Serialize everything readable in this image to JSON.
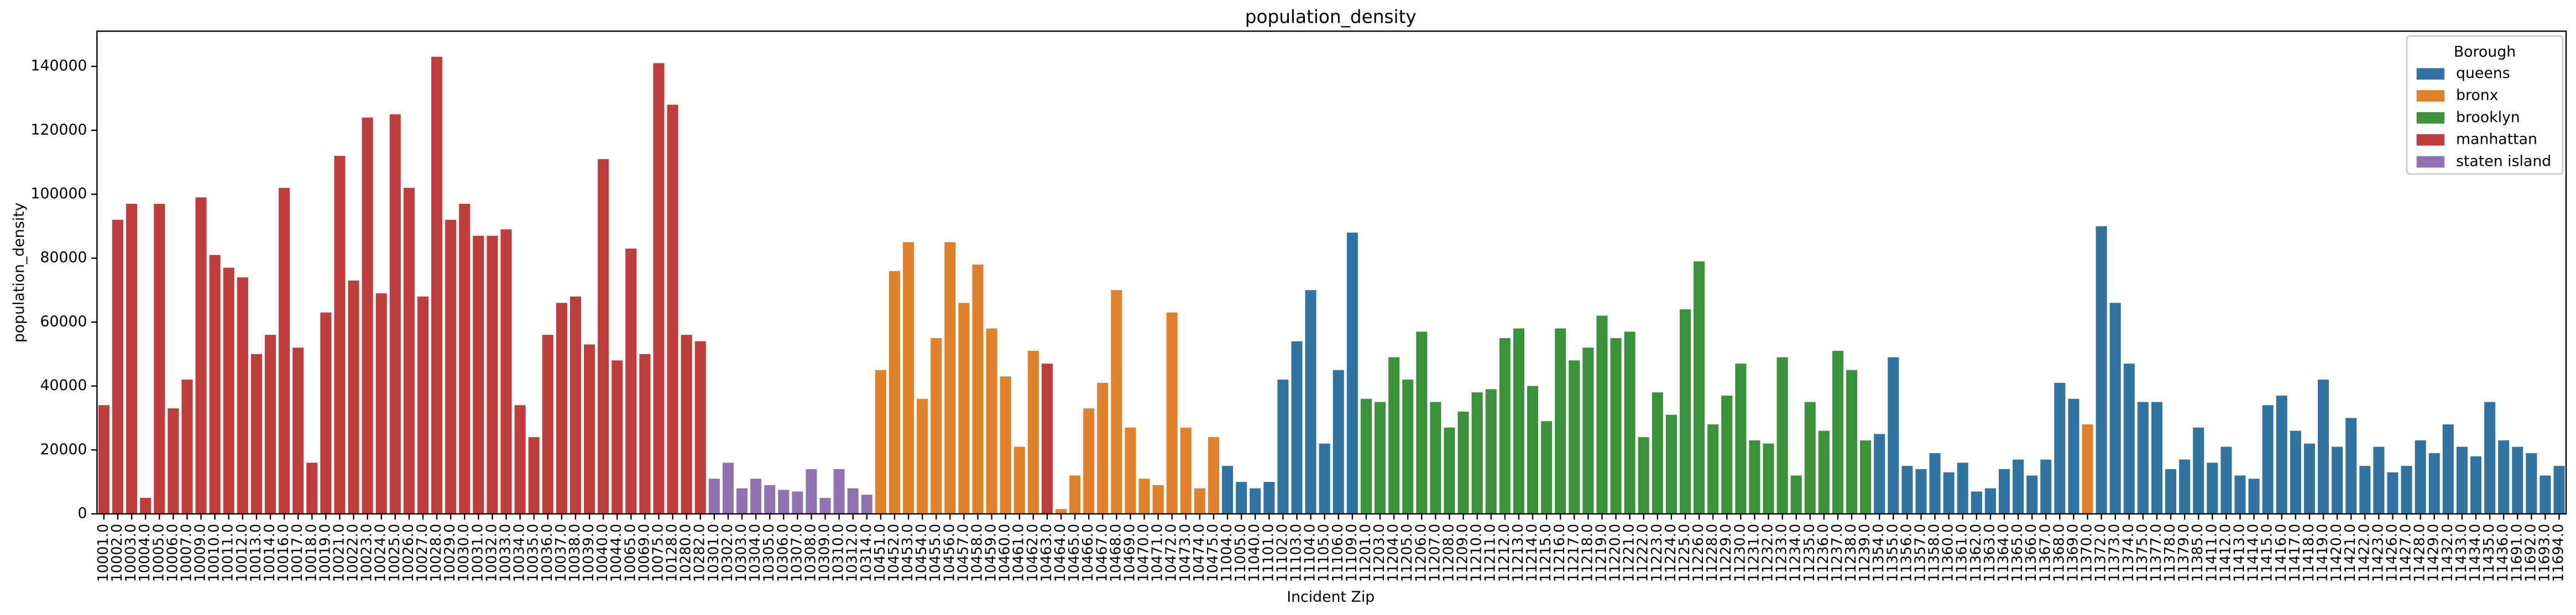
{
  "chart_data": {
    "type": "bar",
    "title": "population_density",
    "xlabel": "Incident Zip",
    "ylabel": "population_density",
    "legend_title": "Borough",
    "legend": "upper right",
    "series": [
      {
        "name": "queens",
        "color": "#3274a1"
      },
      {
        "name": "bronx",
        "color": "#e1812c"
      },
      {
        "name": "brooklyn",
        "color": "#3a923a"
      },
      {
        "name": "manhattan",
        "color": "#c03d3e"
      },
      {
        "name": "staten island",
        "color": "#9372b2"
      }
    ],
    "categories": [
      "10001.0",
      "10002.0",
      "10003.0",
      "10004.0",
      "10005.0",
      "10006.0",
      "10007.0",
      "10009.0",
      "10010.0",
      "10011.0",
      "10012.0",
      "10013.0",
      "10014.0",
      "10016.0",
      "10017.0",
      "10018.0",
      "10019.0",
      "10021.0",
      "10022.0",
      "10023.0",
      "10024.0",
      "10025.0",
      "10026.0",
      "10027.0",
      "10028.0",
      "10029.0",
      "10030.0",
      "10031.0",
      "10032.0",
      "10033.0",
      "10034.0",
      "10035.0",
      "10036.0",
      "10037.0",
      "10038.0",
      "10039.0",
      "10040.0",
      "10044.0",
      "10065.0",
      "10069.0",
      "10075.0",
      "10128.0",
      "10280.0",
      "10282.0",
      "10301.0",
      "10302.0",
      "10303.0",
      "10304.0",
      "10305.0",
      "10306.0",
      "10307.0",
      "10308.0",
      "10309.0",
      "10310.0",
      "10312.0",
      "10314.0",
      "10451.0",
      "10452.0",
      "10453.0",
      "10454.0",
      "10455.0",
      "10456.0",
      "10457.0",
      "10458.0",
      "10459.0",
      "10460.0",
      "10461.0",
      "10462.0",
      "10463.0",
      "10464.0",
      "10465.0",
      "10466.0",
      "10467.0",
      "10468.0",
      "10469.0",
      "10470.0",
      "10471.0",
      "10472.0",
      "10473.0",
      "10474.0",
      "10475.0",
      "11004.0",
      "11005.0",
      "11040.0",
      "11101.0",
      "11102.0",
      "11103.0",
      "11104.0",
      "11105.0",
      "11106.0",
      "11109.0",
      "11201.0",
      "11203.0",
      "11204.0",
      "11205.0",
      "11206.0",
      "11207.0",
      "11208.0",
      "11209.0",
      "11210.0",
      "11211.0",
      "11212.0",
      "11213.0",
      "11214.0",
      "11215.0",
      "11216.0",
      "11217.0",
      "11218.0",
      "11219.0",
      "11220.0",
      "11221.0",
      "11222.0",
      "11223.0",
      "11224.0",
      "11225.0",
      "11226.0",
      "11228.0",
      "11229.0",
      "11230.0",
      "11231.0",
      "11232.0",
      "11233.0",
      "11234.0",
      "11235.0",
      "11236.0",
      "11237.0",
      "11238.0",
      "11239.0",
      "11354.0",
      "11355.0",
      "11356.0",
      "11357.0",
      "11358.0",
      "11360.0",
      "11361.0",
      "11362.0",
      "11363.0",
      "11364.0",
      "11365.0",
      "11366.0",
      "11367.0",
      "11368.0",
      "11369.0",
      "11370.0",
      "11372.0",
      "11373.0",
      "11374.0",
      "11375.0",
      "11377.0",
      "11378.0",
      "11379.0",
      "11385.0",
      "11411.0",
      "11412.0",
      "11413.0",
      "11414.0",
      "11415.0",
      "11416.0",
      "11417.0",
      "11418.0",
      "11419.0",
      "11420.0",
      "11421.0",
      "11422.0",
      "11423.0",
      "11426.0",
      "11427.0",
      "11428.0",
      "11429.0",
      "11432.0",
      "11433.0",
      "11434.0",
      "11435.0",
      "11436.0",
      "11691.0",
      "11692.0",
      "11693.0",
      "11694.0"
    ],
    "values": [
      34000,
      92000,
      97000,
      5000,
      97000,
      33000,
      42000,
      99000,
      81000,
      77000,
      74000,
      50000,
      56000,
      102000,
      52000,
      16000,
      63000,
      112000,
      73000,
      124000,
      69000,
      125000,
      102000,
      68000,
      143000,
      92000,
      97000,
      87000,
      87000,
      89000,
      34000,
      24000,
      56000,
      66000,
      68000,
      53000,
      111000,
      48000,
      83000,
      50000,
      141000,
      128000,
      56000,
      54000,
      11000,
      16000,
      8000,
      11000,
      9000,
      7500,
      7000,
      14000,
      5000,
      14000,
      8000,
      6000,
      45000,
      76000,
      85000,
      36000,
      55000,
      85000,
      66000,
      78000,
      58000,
      43000,
      21000,
      51000,
      47000,
      1500,
      12000,
      33000,
      41000,
      70000,
      27000,
      11000,
      9000,
      63000,
      27000,
      8000,
      24000,
      15000,
      10000,
      8000,
      10000,
      42000,
      54000,
      70000,
      22000,
      45000,
      88000,
      36000,
      35000,
      49000,
      42000,
      57000,
      35000,
      27000,
      32000,
      38000,
      39000,
      55000,
      58000,
      40000,
      29000,
      58000,
      48000,
      52000,
      62000,
      55000,
      57000,
      24000,
      38000,
      31000,
      64000,
      79000,
      28000,
      37000,
      47000,
      23000,
      22000,
      49000,
      12000,
      35000,
      26000,
      51000,
      45000,
      23000,
      25000,
      49000,
      15000,
      14000,
      19000,
      13000,
      16000,
      7000,
      8000,
      14000,
      17000,
      12000,
      17000,
      41000,
      36000,
      28000,
      90000,
      66000,
      47000,
      35000,
      35000,
      14000,
      17000,
      27000,
      16000,
      21000,
      12000,
      11000,
      34000,
      37000,
      26000,
      22000,
      42000,
      21000,
      30000,
      15000,
      21000,
      13000,
      15000,
      23000,
      19000,
      28000,
      21000,
      18000,
      35000,
      23000,
      21000,
      19000,
      12000,
      15000
    ],
    "hue": [
      "manhattan",
      "manhattan",
      "manhattan",
      "manhattan",
      "manhattan",
      "manhattan",
      "manhattan",
      "manhattan",
      "manhattan",
      "manhattan",
      "manhattan",
      "manhattan",
      "manhattan",
      "manhattan",
      "manhattan",
      "manhattan",
      "manhattan",
      "manhattan",
      "manhattan",
      "manhattan",
      "manhattan",
      "manhattan",
      "manhattan",
      "manhattan",
      "manhattan",
      "manhattan",
      "manhattan",
      "manhattan",
      "manhattan",
      "manhattan",
      "manhattan",
      "manhattan",
      "manhattan",
      "manhattan",
      "manhattan",
      "manhattan",
      "manhattan",
      "manhattan",
      "manhattan",
      "manhattan",
      "manhattan",
      "manhattan",
      "manhattan",
      "manhattan",
      "staten island",
      "staten island",
      "staten island",
      "staten island",
      "staten island",
      "staten island",
      "staten island",
      "staten island",
      "staten island",
      "staten island",
      "staten island",
      "staten island",
      "bronx",
      "bronx",
      "bronx",
      "bronx",
      "bronx",
      "bronx",
      "bronx",
      "bronx",
      "bronx",
      "bronx",
      "bronx",
      "bronx",
      "manhattan",
      "bronx",
      "bronx",
      "bronx",
      "bronx",
      "bronx",
      "bronx",
      "bronx",
      "bronx",
      "bronx",
      "bronx",
      "bronx",
      "bronx",
      "queens",
      "queens",
      "queens",
      "queens",
      "queens",
      "queens",
      "queens",
      "queens",
      "queens",
      "queens",
      "brooklyn",
      "brooklyn",
      "brooklyn",
      "brooklyn",
      "brooklyn",
      "brooklyn",
      "brooklyn",
      "brooklyn",
      "brooklyn",
      "brooklyn",
      "brooklyn",
      "brooklyn",
      "brooklyn",
      "brooklyn",
      "brooklyn",
      "brooklyn",
      "brooklyn",
      "brooklyn",
      "brooklyn",
      "brooklyn",
      "brooklyn",
      "brooklyn",
      "brooklyn",
      "brooklyn",
      "brooklyn",
      "brooklyn",
      "brooklyn",
      "brooklyn",
      "brooklyn",
      "brooklyn",
      "brooklyn",
      "brooklyn",
      "brooklyn",
      "brooklyn",
      "brooklyn",
      "brooklyn",
      "brooklyn",
      "queens",
      "queens",
      "queens",
      "queens",
      "queens",
      "queens",
      "queens",
      "queens",
      "queens",
      "queens",
      "queens",
      "queens",
      "queens",
      "queens",
      "queens",
      "bronx",
      "queens",
      "queens",
      "queens",
      "queens",
      "queens",
      "queens",
      "queens",
      "queens",
      "queens",
      "queens",
      "queens",
      "queens",
      "queens",
      "queens",
      "queens",
      "queens",
      "queens",
      "queens",
      "queens",
      "queens",
      "queens",
      "queens",
      "queens",
      "queens",
      "queens",
      "queens",
      "queens",
      "queens",
      "queens",
      "queens",
      "queens",
      "queens",
      "queens",
      "queens"
    ],
    "ylim": [
      0,
      151000
    ],
    "yticks": [
      0,
      20000,
      40000,
      60000,
      80000,
      100000,
      120000,
      140000
    ]
  }
}
